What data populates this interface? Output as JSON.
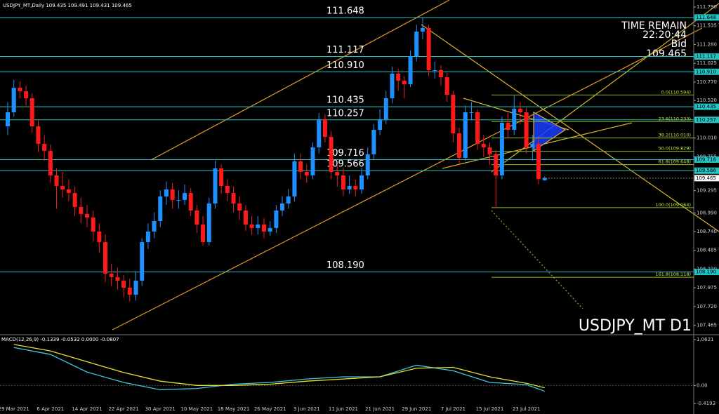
{
  "header": "USDJPY_MT,Daily 109.435 109.491 109.431 109.465",
  "chart_data": {
    "type": "candlestick",
    "bull_color": "#1e90ff",
    "bear_color": "#ff1a1a",
    "level_color": "#25c4c4",
    "fib_color": "#8fbc1f",
    "categories": [
      null,
      "29 Mar 2021",
      null,
      null,
      null,
      null,
      null,
      "6 Apr 2021",
      null,
      null,
      null,
      null,
      null,
      "14 Apr 2021",
      null,
      null,
      null,
      null,
      null,
      "22 Apr 2021",
      null,
      null,
      null,
      null,
      null,
      "30 Apr 2021",
      null,
      null,
      null,
      null,
      null,
      "10 May 2021",
      null,
      null,
      null,
      null,
      null,
      "18 May 2021",
      null,
      null,
      null,
      null,
      null,
      "26 May 2021",
      null,
      null,
      null,
      null,
      null,
      "3 Jun 2021",
      null,
      null,
      null,
      null,
      null,
      "11 Jun 2021",
      null,
      null,
      null,
      null,
      null,
      "21 Jun 2021",
      null,
      null,
      null,
      null,
      null,
      "29 Jun 2021",
      null,
      null,
      null,
      null,
      null,
      "7 Jul 2021",
      null,
      null,
      null,
      null,
      null,
      "15 Jul 2021",
      null,
      null,
      null,
      null,
      null,
      "23 Jul 2021",
      null,
      null,
      null
    ],
    "open": [
      110.169,
      110.36,
      110.693,
      110.646,
      110.55,
      110.169,
      109.931,
      109.835,
      109.502,
      109.359,
      109.311,
      109.263,
      109.073,
      108.978,
      108.93,
      108.739,
      108.596,
      108.167,
      108.12,
      108.072,
      107.976,
      107.881,
      108.072,
      108.596,
      108.739,
      108.882,
      109.216,
      109.311,
      109.168,
      109.168,
      109.263,
      109.025,
      108.835,
      108.596,
      109.12,
      109.597,
      109.359,
      109.263,
      109.12,
      109.025,
      108.835,
      108.787,
      108.835,
      108.739,
      108.787,
      109.025,
      109.12,
      109.216,
      109.692,
      109.549,
      109.502,
      109.883,
      110.264,
      110.026,
      109.549,
      109.502,
      109.311,
      109.359,
      109.311,
      109.502,
      109.788,
      110.121,
      110.264,
      110.55,
      110.884,
      110.789,
      110.741,
      111.122,
      111.456,
      111.504,
      110.932,
      110.932,
      110.836,
      110.598,
      110.074,
      109.74,
      110.36,
      110.36,
      109.931,
      109.883,
      109.788,
      109.502,
      110.217,
      110.121,
      110.407,
      110.36,
      109.883,
      109.931,
      109.435
    ],
    "high": [
      110.5,
      110.8,
      110.78,
      110.72,
      110.62,
      110.25,
      110.05,
      109.92,
      109.6,
      109.55,
      109.45,
      109.35,
      109.2,
      109.1,
      109.02,
      108.85,
      108.7,
      108.3,
      108.25,
      108.15,
      108.1,
      108.2,
      108.65,
      108.85,
      109.0,
      109.3,
      109.42,
      109.4,
      109.3,
      109.38,
      109.33,
      109.1,
      108.95,
      109.2,
      109.7,
      109.65,
      109.45,
      109.35,
      109.22,
      109.1,
      108.95,
      108.95,
      108.92,
      108.88,
      109.1,
      109.22,
      109.32,
      109.8,
      109.8,
      109.65,
      109.95,
      110.35,
      110.33,
      110.1,
      109.65,
      109.6,
      109.5,
      109.45,
      109.6,
      109.88,
      110.2,
      110.4,
      110.65,
      110.98,
      110.95,
      110.85,
      111.2,
      111.55,
      111.65,
      111.55,
      111.05,
      111.0,
      110.9,
      110.65,
      110.15,
      110.45,
      110.5,
      110.4,
      110.05,
      109.95,
      109.85,
      110.3,
      110.35,
      110.59,
      110.5,
      110.42,
      110.05,
      110.0,
      109.491
    ],
    "low": [
      110.05,
      110.3,
      110.55,
      110.45,
      110.08,
      109.82,
      109.7,
      109.4,
      109.05,
      109.2,
      109.15,
      108.95,
      108.85,
      108.8,
      108.6,
      108.45,
      108.05,
      108.0,
      107.95,
      107.85,
      107.79,
      107.8,
      108.0,
      108.5,
      108.65,
      108.8,
      109.1,
      109.05,
      109.05,
      109.1,
      108.95,
      108.72,
      108.55,
      108.55,
      109.05,
      109.25,
      109.15,
      109.0,
      108.9,
      108.75,
      108.7,
      108.7,
      108.65,
      108.68,
      108.72,
      108.95,
      109.05,
      109.15,
      109.45,
      109.4,
      109.45,
      109.8,
      109.95,
      109.45,
      109.35,
      109.22,
      109.25,
      109.22,
      109.25,
      109.45,
      109.72,
      110.05,
      110.2,
      110.48,
      110.65,
      110.55,
      110.7,
      111.05,
      111.35,
      110.85,
      110.82,
      110.72,
      110.5,
      109.95,
      109.65,
      109.7,
      110.25,
      109.85,
      109.75,
      109.65,
      109.06,
      109.45,
      110.0,
      110.05,
      110.2,
      109.8,
      109.7,
      109.38,
      109.431
    ],
    "close": [
      110.36,
      110.693,
      110.646,
      110.55,
      110.169,
      109.931,
      109.835,
      109.502,
      109.359,
      109.311,
      109.263,
      109.073,
      108.978,
      108.93,
      108.739,
      108.596,
      108.167,
      108.12,
      108.072,
      107.976,
      107.881,
      108.072,
      108.596,
      108.739,
      108.882,
      109.216,
      109.311,
      109.168,
      109.168,
      109.263,
      109.025,
      108.835,
      108.596,
      109.12,
      109.597,
      109.359,
      109.263,
      109.12,
      109.025,
      108.835,
      108.787,
      108.835,
      108.739,
      108.787,
      109.025,
      109.12,
      109.216,
      109.692,
      109.549,
      109.502,
      109.883,
      110.264,
      110.026,
      109.549,
      109.502,
      109.311,
      109.359,
      109.311,
      109.502,
      109.788,
      110.121,
      110.264,
      110.55,
      110.884,
      110.789,
      110.741,
      111.122,
      111.456,
      111.504,
      110.932,
      110.932,
      110.836,
      110.598,
      110.074,
      109.74,
      110.36,
      110.36,
      109.931,
      109.883,
      109.788,
      109.502,
      110.217,
      110.121,
      110.407,
      110.36,
      109.883,
      109.931,
      109.454,
      109.465
    ],
    "ylim": [
      107.347,
      111.885
    ],
    "yticks": [
      {
        "value": 111.79,
        "label": "111.790"
      },
      {
        "value": 111.535,
        "label": "111.535"
      },
      {
        "value": 111.28,
        "label": "111.280"
      },
      {
        "value": 111.025,
        "label": "111.025"
      },
      {
        "value": 110.77,
        "label": "110.770"
      },
      {
        "value": 110.52,
        "label": "110.520"
      },
      {
        "value": 110.01,
        "label": "110.010"
      },
      {
        "value": 109.755,
        "label": "109.755"
      },
      {
        "value": 109.295,
        "label": "109.295"
      },
      {
        "value": 108.99,
        "label": "108.990"
      },
      {
        "value": 108.74,
        "label": "108.740"
      },
      {
        "value": 108.485,
        "label": "108.485"
      },
      {
        "value": 108.23,
        "label": "108.230"
      },
      {
        "value": 107.975,
        "label": "107.975"
      },
      {
        "value": 107.72,
        "label": "107.720"
      },
      {
        "value": 107.465,
        "label": "107.465"
      }
    ],
    "levels": [
      {
        "value": 111.648,
        "label": "111.648"
      },
      {
        "value": 111.117,
        "label": "111.117"
      },
      {
        "value": 110.91,
        "label": "110.910"
      },
      {
        "value": 110.435,
        "label": "110.435"
      },
      {
        "value": 110.257,
        "label": "110.257"
      },
      {
        "value": 109.716,
        "label": "109.716"
      },
      {
        "value": 109.566,
        "label": "109.566"
      },
      {
        "value": 108.19,
        "label": "108.190"
      }
    ],
    "fib_levels": [
      {
        "value": 110.594,
        "label": "0.0(110.594)"
      },
      {
        "value": 110.233,
        "label": "23.6(110.233)"
      },
      {
        "value": 110.01,
        "label": "38.2(110.010)"
      },
      {
        "value": 109.829,
        "label": "50.0(109.829)"
      },
      {
        "value": 109.648,
        "label": "61.8(109.648)"
      },
      {
        "value": 109.064,
        "label": "100.0(109.064)"
      },
      {
        "value": 108.118,
        "label": "161.8(108.118)"
      }
    ],
    "time_label": "TIME REMAIN",
    "time": "22:20:44",
    "bid_label": "Bid",
    "bid": {
      "value": 109.465,
      "label": "109.465"
    },
    "symbol_label": "USDJPY_MT D1",
    "macd": {
      "title": "MACD(12,26,9) -0.1339 -0.0532 0.0000 -0.0807",
      "ylim": [
        -0.45,
        1.16
      ],
      "yticks": [
        1.0621,
        {
          "value": 0,
          "label": "0.00"
        },
        -0.4193
      ],
      "main_color": "#40c8e0",
      "signal_color": "#e8e030",
      "x": [
        1,
        7,
        13,
        19,
        25,
        31,
        37,
        43,
        49,
        55,
        61,
        67,
        73,
        79,
        85,
        88
      ],
      "main": [
        0.88,
        0.72,
        0.31,
        0.07,
        -0.1,
        -0.07,
        0.03,
        0.07,
        0.15,
        0.2,
        0.2,
        0.47,
        0.34,
        0.07,
        0.02,
        -0.1339
      ],
      "signal": [
        0.95,
        0.8,
        0.55,
        0.3,
        0.1,
        0.0,
        0.0,
        0.03,
        0.1,
        0.15,
        0.2,
        0.4,
        0.42,
        0.2,
        0.05,
        -0.0532
      ]
    }
  }
}
